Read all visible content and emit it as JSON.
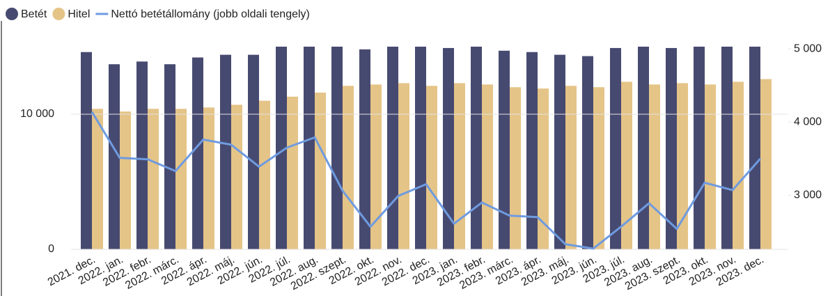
{
  "chart_data": {
    "type": "bar-line",
    "categories": [
      "2021. dec.",
      "2022. jan.",
      "2022. febr.",
      "2022. márc.",
      "2022. ápr.",
      "2022. máj.",
      "2022. jún.",
      "2022. júl.",
      "2022. aug.",
      "2022. szept.",
      "2022. okt.",
      "2022. nov.",
      "2022. dec.",
      "2023. jan.",
      "2023. febr.",
      "2023. márc.",
      "2023. ápr.",
      "2023. máj.",
      "2023. jún.",
      "2023. júl.",
      "2023. aug.",
      "2023. szept.",
      "2023. okt.",
      "2023. nov.",
      "2023. dec."
    ],
    "series": [
      {
        "name": "Betét",
        "color": "#474a70",
        "type": "bar",
        "values": [
          14600,
          13700,
          13900,
          13700,
          14200,
          14400,
          14400,
          15000,
          15000,
          15000,
          14800,
          15000,
          15000,
          14900,
          15000,
          14700,
          14600,
          14400,
          14300,
          14900,
          15000,
          14900,
          15000,
          15000,
          15000
        ]
      },
      {
        "name": "Hitel",
        "color": "#e5c487",
        "type": "bar",
        "values": [
          10400,
          10200,
          10400,
          10400,
          10500,
          10700,
          11000,
          11300,
          11600,
          12100,
          12200,
          12300,
          12100,
          12300,
          12200,
          12000,
          11900,
          12100,
          12000,
          12400,
          12200,
          12300,
          12200,
          12400,
          12600
        ]
      },
      {
        "name": "Nettó betétállomány (jobb oldali tengely)",
        "color": "#6f9be0",
        "type": "line",
        "axis": "y2",
        "values": [
          4140,
          3510,
          3490,
          3330,
          3760,
          3690,
          3390,
          3650,
          3790,
          3060,
          2570,
          2990,
          3150,
          2610,
          2900,
          2720,
          2700,
          2330,
          2270,
          2570,
          2890,
          2540,
          3170,
          3070,
          3500
        ]
      }
    ],
    "ylim": [
      0,
      15000
    ],
    "yticks": [
      0,
      {
        "value": 10000,
        "label": "10 000"
      }
    ],
    "y2lim": [
      2260,
      5030
    ],
    "y2ticks": [
      {
        "value": 3000,
        "label": "3 000"
      },
      {
        "value": 4000,
        "label": "4 000"
      },
      {
        "value": 5000,
        "label": "5 000"
      }
    ],
    "grid": true
  }
}
